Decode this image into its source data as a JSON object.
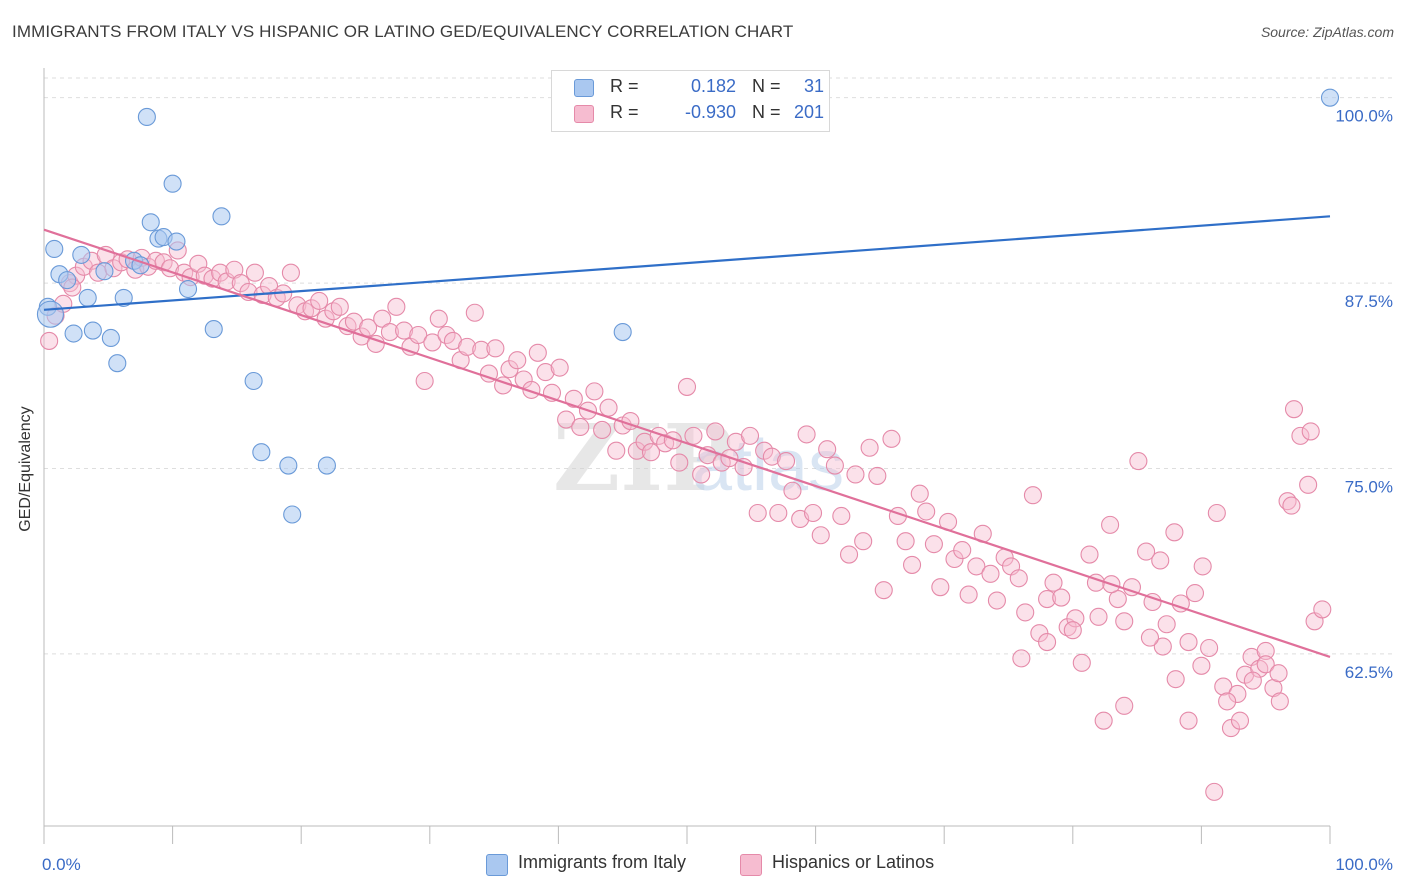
{
  "title": "IMMIGRANTS FROM ITALY VS HISPANIC OR LATINO GED/EQUIVALENCY CORRELATION CHART",
  "source": "Source: ZipAtlas.com",
  "watermark": "ZIPatlas",
  "legend": {
    "rows": [
      {
        "r_label": "R =",
        "r_value": "0.182",
        "n_label": "N =",
        "n_value": "31"
      },
      {
        "r_label": "R =",
        "r_value": "-0.930",
        "n_label": "N =",
        "n_value": "201"
      }
    ]
  },
  "bottom_legend": [
    "Immigrants from Italy",
    "Hispanics or Latinos"
  ],
  "colors": {
    "blue_fill": "#aac8f0",
    "blue_stroke": "#6a9ad8",
    "blue_line": "#2f6fc8",
    "pink_fill": "#f6bcd0",
    "pink_stroke": "#e58aa9",
    "pink_line": "#e0709a",
    "tick_text": "#3a6bc6",
    "grid": "#dedede"
  },
  "chart_data": {
    "type": "scatter",
    "title": "IMMIGRANTS FROM ITALY VS HISPANIC OR LATINO GED/EQUIVALENCY CORRELATION CHART",
    "xlabel": "",
    "ylabel": "GED/Equivalency",
    "xlim": [
      0,
      100
    ],
    "ylim": [
      50.9,
      102
    ],
    "x_tick_labels": [
      "0.0%",
      "100.0%"
    ],
    "y_ticks": [
      62.5,
      75.0,
      87.5,
      100.0
    ],
    "y_tick_labels": [
      "62.5%",
      "75.0%",
      "87.5%",
      "100.0%"
    ],
    "grid": "horizontal dashed",
    "legend_placement": "top-center",
    "series": [
      {
        "name": "Immigrants from Italy",
        "color": "#aac8f0",
        "trend": {
          "x0": 0,
          "y0": 85.7,
          "x1": 100,
          "y1": 92.0
        },
        "points": [
          [
            0.3,
            85.9
          ],
          [
            0.8,
            89.8
          ],
          [
            1.2,
            88.1
          ],
          [
            1.8,
            87.7
          ],
          [
            2.3,
            84.1
          ],
          [
            2.9,
            89.4
          ],
          [
            3.4,
            86.5
          ],
          [
            3.8,
            84.3
          ],
          [
            4.7,
            88.3
          ],
          [
            5.2,
            83.8
          ],
          [
            5.7,
            82.1
          ],
          [
            6.2,
            86.5
          ],
          [
            7.0,
            89.0
          ],
          [
            7.5,
            88.7
          ],
          [
            8.0,
            98.7
          ],
          [
            8.3,
            91.6
          ],
          [
            8.9,
            90.5
          ],
          [
            9.3,
            90.6
          ],
          [
            10.0,
            94.2
          ],
          [
            10.3,
            90.3
          ],
          [
            11.2,
            87.1
          ],
          [
            13.2,
            84.4
          ],
          [
            13.8,
            92.0
          ],
          [
            16.3,
            80.9
          ],
          [
            16.9,
            76.1
          ],
          [
            19.0,
            75.2
          ],
          [
            19.3,
            71.9
          ],
          [
            22.0,
            75.2
          ],
          [
            45.0,
            84.2
          ],
          [
            100.0,
            100.0
          ],
          [
            0.5,
            85.4
          ]
        ]
      },
      {
        "name": "Hispanics or Latinos",
        "color": "#f6bcd0",
        "trend": {
          "x0": 0,
          "y0": 91.1,
          "x1": 100,
          "y1": 62.3
        },
        "points": [
          [
            0.4,
            83.6
          ],
          [
            0.9,
            85.3
          ],
          [
            1.5,
            86.1
          ],
          [
            2.0,
            87.5
          ],
          [
            2.5,
            88.0
          ],
          [
            3.1,
            88.6
          ],
          [
            3.7,
            89.0
          ],
          [
            4.2,
            88.2
          ],
          [
            4.8,
            89.4
          ],
          [
            5.4,
            88.5
          ],
          [
            6.0,
            88.9
          ],
          [
            6.5,
            89.1
          ],
          [
            7.1,
            88.4
          ],
          [
            7.6,
            89.2
          ],
          [
            8.1,
            88.6
          ],
          [
            8.7,
            89.0
          ],
          [
            9.3,
            88.9
          ],
          [
            9.8,
            88.5
          ],
          [
            10.4,
            89.7
          ],
          [
            10.9,
            88.2
          ],
          [
            11.4,
            87.9
          ],
          [
            12.0,
            88.8
          ],
          [
            12.5,
            88.0
          ],
          [
            13.1,
            87.8
          ],
          [
            13.7,
            88.2
          ],
          [
            14.2,
            87.6
          ],
          [
            14.8,
            88.4
          ],
          [
            15.3,
            87.5
          ],
          [
            15.9,
            86.9
          ],
          [
            16.4,
            88.2
          ],
          [
            17.0,
            86.7
          ],
          [
            17.5,
            87.3
          ],
          [
            18.1,
            86.5
          ],
          [
            18.6,
            86.8
          ],
          [
            19.2,
            88.2
          ],
          [
            19.7,
            86.0
          ],
          [
            20.3,
            85.6
          ],
          [
            20.8,
            85.8
          ],
          [
            21.4,
            86.3
          ],
          [
            21.9,
            85.1
          ],
          [
            22.5,
            85.6
          ],
          [
            23.0,
            85.9
          ],
          [
            23.6,
            84.6
          ],
          [
            24.1,
            84.9
          ],
          [
            24.7,
            83.9
          ],
          [
            25.2,
            84.5
          ],
          [
            25.8,
            83.4
          ],
          [
            26.3,
            85.1
          ],
          [
            26.9,
            84.2
          ],
          [
            27.4,
            85.9
          ],
          [
            28.0,
            84.3
          ],
          [
            28.5,
            83.2
          ],
          [
            29.1,
            84.0
          ],
          [
            29.6,
            80.9
          ],
          [
            30.2,
            83.5
          ],
          [
            30.7,
            85.1
          ],
          [
            31.3,
            84.0
          ],
          [
            31.8,
            83.6
          ],
          [
            32.4,
            82.3
          ],
          [
            32.9,
            83.2
          ],
          [
            33.5,
            85.5
          ],
          [
            34.0,
            83.0
          ],
          [
            34.6,
            81.4
          ],
          [
            35.1,
            83.1
          ],
          [
            35.7,
            80.6
          ],
          [
            36.2,
            81.7
          ],
          [
            36.8,
            82.3
          ],
          [
            37.3,
            81.0
          ],
          [
            37.9,
            80.3
          ],
          [
            38.4,
            82.8
          ],
          [
            39.0,
            81.5
          ],
          [
            39.5,
            80.1
          ],
          [
            40.1,
            81.8
          ],
          [
            40.6,
            78.3
          ],
          [
            41.2,
            79.7
          ],
          [
            41.7,
            77.8
          ],
          [
            42.3,
            78.9
          ],
          [
            42.8,
            80.2
          ],
          [
            43.4,
            77.6
          ],
          [
            43.9,
            79.1
          ],
          [
            44.5,
            76.2
          ],
          [
            45.0,
            77.9
          ],
          [
            45.6,
            78.2
          ],
          [
            46.1,
            76.2
          ],
          [
            46.7,
            76.8
          ],
          [
            47.2,
            76.1
          ],
          [
            47.8,
            77.2
          ],
          [
            48.3,
            76.7
          ],
          [
            48.9,
            76.9
          ],
          [
            49.4,
            75.4
          ],
          [
            50.0,
            80.5
          ],
          [
            50.5,
            77.2
          ],
          [
            51.1,
            74.6
          ],
          [
            51.6,
            75.9
          ],
          [
            52.2,
            77.5
          ],
          [
            52.7,
            75.4
          ],
          [
            53.3,
            75.7
          ],
          [
            53.8,
            76.8
          ],
          [
            54.4,
            75.1
          ],
          [
            54.9,
            77.2
          ],
          [
            55.5,
            72.0
          ],
          [
            56.0,
            76.2
          ],
          [
            56.6,
            75.8
          ],
          [
            57.1,
            72.0
          ],
          [
            57.7,
            75.5
          ],
          [
            58.2,
            73.5
          ],
          [
            58.8,
            71.6
          ],
          [
            59.3,
            77.3
          ],
          [
            59.8,
            72.0
          ],
          [
            60.4,
            70.5
          ],
          [
            60.9,
            76.3
          ],
          [
            61.5,
            75.2
          ],
          [
            62.0,
            71.8
          ],
          [
            62.6,
            69.2
          ],
          [
            63.1,
            74.6
          ],
          [
            63.7,
            70.1
          ],
          [
            64.2,
            76.4
          ],
          [
            64.8,
            74.5
          ],
          [
            65.3,
            66.8
          ],
          [
            65.9,
            77.0
          ],
          [
            66.4,
            71.8
          ],
          [
            67.0,
            70.1
          ],
          [
            67.5,
            68.5
          ],
          [
            68.1,
            73.3
          ],
          [
            68.6,
            72.1
          ],
          [
            69.2,
            69.9
          ],
          [
            69.7,
            67.0
          ],
          [
            70.3,
            71.4
          ],
          [
            70.8,
            68.9
          ],
          [
            71.4,
            69.5
          ],
          [
            71.9,
            66.5
          ],
          [
            72.5,
            68.4
          ],
          [
            73.0,
            70.6
          ],
          [
            73.6,
            67.9
          ],
          [
            74.1,
            66.1
          ],
          [
            74.7,
            69.0
          ],
          [
            75.2,
            68.4
          ],
          [
            75.8,
            67.6
          ],
          [
            76.3,
            65.3
          ],
          [
            76.9,
            73.2
          ],
          [
            77.4,
            63.9
          ],
          [
            78.0,
            66.2
          ],
          [
            78.5,
            67.3
          ],
          [
            79.1,
            66.3
          ],
          [
            79.6,
            64.3
          ],
          [
            80.2,
            64.9
          ],
          [
            80.7,
            61.9
          ],
          [
            81.3,
            69.2
          ],
          [
            81.8,
            67.3
          ],
          [
            82.4,
            58.0
          ],
          [
            82.9,
            71.2
          ],
          [
            83.5,
            66.2
          ],
          [
            84.0,
            64.7
          ],
          [
            84.6,
            67.0
          ],
          [
            85.1,
            75.5
          ],
          [
            85.7,
            69.4
          ],
          [
            86.2,
            66.0
          ],
          [
            86.8,
            68.8
          ],
          [
            87.3,
            64.5
          ],
          [
            87.9,
            70.7
          ],
          [
            88.4,
            65.9
          ],
          [
            89.0,
            63.3
          ],
          [
            89.5,
            66.6
          ],
          [
            90.1,
            68.4
          ],
          [
            90.6,
            62.9
          ],
          [
            91.2,
            72.0
          ],
          [
            91.7,
            60.3
          ],
          [
            92.3,
            57.5
          ],
          [
            92.8,
            59.8
          ],
          [
            93.4,
            61.1
          ],
          [
            93.9,
            62.3
          ],
          [
            94.5,
            61.5
          ],
          [
            95.0,
            62.7
          ],
          [
            95.6,
            60.2
          ],
          [
            96.1,
            59.3
          ],
          [
            96.7,
            72.8
          ],
          [
            97.2,
            79.0
          ],
          [
            97.7,
            77.2
          ],
          [
            98.3,
            73.9
          ],
          [
            98.8,
            64.7
          ],
          [
            99.4,
            65.5
          ],
          [
            91.0,
            53.2
          ],
          [
            93.0,
            58.0
          ],
          [
            84.0,
            59.0
          ],
          [
            89.0,
            58.0
          ],
          [
            82.0,
            65.0
          ],
          [
            87.0,
            63.0
          ],
          [
            95.0,
            61.8
          ],
          [
            97.0,
            72.5
          ],
          [
            98.5,
            77.5
          ],
          [
            80.0,
            64.1
          ],
          [
            83.0,
            67.2
          ],
          [
            86.0,
            63.6
          ],
          [
            88.0,
            60.8
          ],
          [
            90.0,
            61.7
          ],
          [
            92.0,
            59.3
          ],
          [
            94.0,
            60.7
          ],
          [
            96.0,
            61.2
          ],
          [
            78.0,
            63.3
          ],
          [
            76.0,
            62.2
          ],
          [
            2.2,
            87.2
          ]
        ]
      }
    ]
  }
}
